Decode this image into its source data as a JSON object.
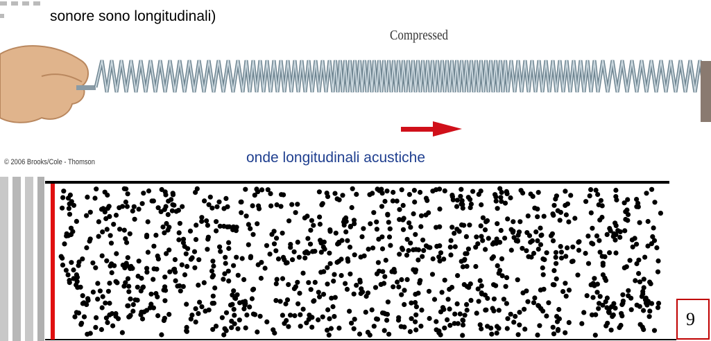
{
  "slide": {
    "text_line": "sonore sono longitudinali)",
    "figure_label": "Compressed",
    "copyright": "© 2006 Brooks/Cole - Thomson",
    "caption": "onde longitudinali acustiche",
    "page_number": "9"
  }
}
